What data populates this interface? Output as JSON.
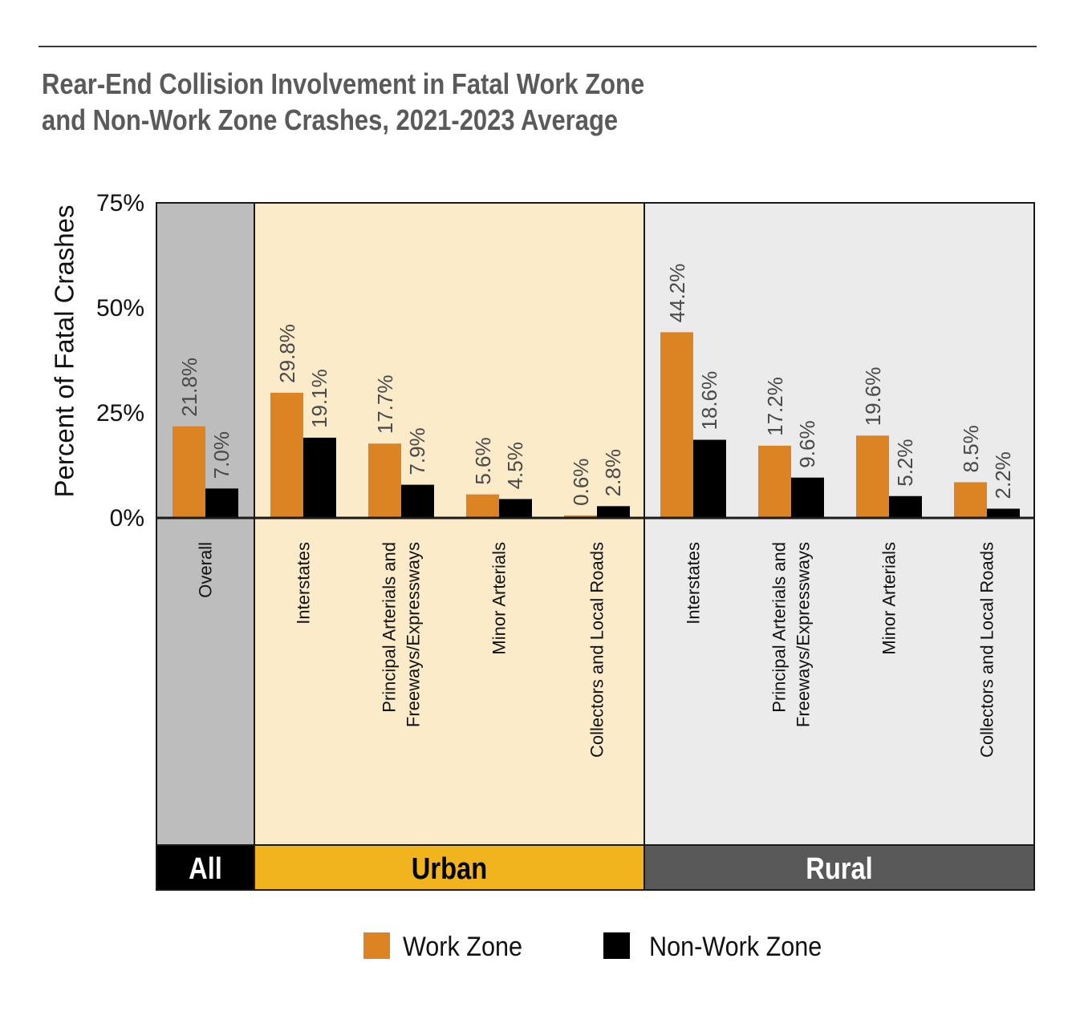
{
  "title_lines": [
    "Rear-End Collision Involvement in Fatal Work Zone",
    "and Non-Work Zone Crashes, 2021-2023 Average"
  ],
  "colors": {
    "work_zone": "#dc8323",
    "non_work_zone": "#000000",
    "all_panel": "#bdbdbd",
    "urban_panel": "#fcebc9",
    "rural_panel": "#ebebeb",
    "all_band": "#000000",
    "urban_band": "#f1b41c",
    "rural_band": "#595959"
  },
  "chart_data": {
    "type": "bar",
    "ylabel": "Percent of Fatal Crashes",
    "ylim": [
      0,
      75
    ],
    "yticks": [
      {
        "value": 0,
        "label": "0%"
      },
      {
        "value": 25,
        "label": "25%"
      },
      {
        "value": 50,
        "label": "50%"
      },
      {
        "value": 75,
        "label": "75%"
      }
    ],
    "groups": [
      {
        "name": "All",
        "categories": [
          {
            "label": [
              "Overall"
            ],
            "work_zone": 21.8,
            "non_work_zone": 7.0,
            "work_zone_label": "21.8%",
            "non_work_zone_label": "7.0%"
          }
        ]
      },
      {
        "name": "Urban",
        "categories": [
          {
            "label": [
              "Interstates"
            ],
            "work_zone": 29.8,
            "non_work_zone": 19.1,
            "work_zone_label": "29.8%",
            "non_work_zone_label": "19.1%"
          },
          {
            "label": [
              "Principal Arterials and",
              "Freeways/Expressways"
            ],
            "work_zone": 17.7,
            "non_work_zone": 7.9,
            "work_zone_label": "17.7%",
            "non_work_zone_label": "7.9%"
          },
          {
            "label": [
              "Minor Arterials"
            ],
            "work_zone": 5.6,
            "non_work_zone": 4.5,
            "work_zone_label": "5.6%",
            "non_work_zone_label": "4.5%"
          },
          {
            "label": [
              "Collectors and Local Roads"
            ],
            "work_zone": 0.6,
            "non_work_zone": 2.8,
            "work_zone_label": "0.6%",
            "non_work_zone_label": "2.8%"
          }
        ]
      },
      {
        "name": "Rural",
        "categories": [
          {
            "label": [
              "Interstates"
            ],
            "work_zone": 44.2,
            "non_work_zone": 18.6,
            "work_zone_label": "44.2%",
            "non_work_zone_label": "18.6%"
          },
          {
            "label": [
              "Principal Arterials and",
              "Freeways/Expressways"
            ],
            "work_zone": 17.2,
            "non_work_zone": 9.6,
            "work_zone_label": "17.2%",
            "non_work_zone_label": "9.6%"
          },
          {
            "label": [
              "Minor Arterials"
            ],
            "work_zone": 19.6,
            "non_work_zone": 5.2,
            "work_zone_label": "19.6%",
            "non_work_zone_label": "5.2%"
          },
          {
            "label": [
              "Collectors and Local Roads"
            ],
            "work_zone": 8.5,
            "non_work_zone": 2.2,
            "work_zone_label": "8.5%",
            "non_work_zone_label": "2.2%"
          }
        ]
      }
    ],
    "legend": {
      "position": "bottom-center",
      "items": [
        {
          "key": "work_zone",
          "label": "Work Zone"
        },
        {
          "key": "non_work_zone",
          "label": "Non-Work Zone"
        }
      ]
    },
    "grid": false
  }
}
